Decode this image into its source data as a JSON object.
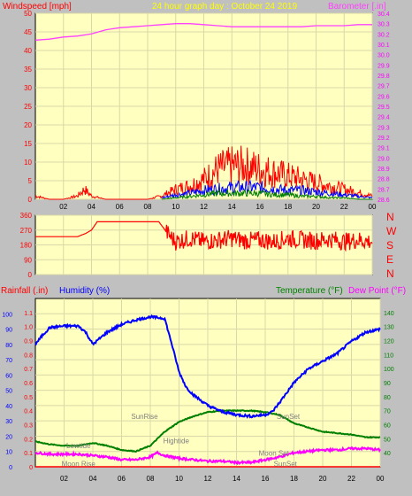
{
  "header": {
    "left_label": "Windspeed [mph]",
    "center_label": "24 hour graph day : October 24 2019",
    "right_label": "Barometer [.in]"
  },
  "colors": {
    "background": "#c0c0c0",
    "plot_bg": "#ffffc0",
    "grid": "#d8d8a8",
    "wind_speed": "#ff0000",
    "wind_avg": "#0000ff",
    "wind_low": "#008000",
    "barometer": "#ff40ff",
    "wind_dir": "#ff0000",
    "humidity": "#0000ff",
    "temperature": "#008000",
    "dewpoint": "#ff00ff",
    "rain": "#ff0000",
    "axis_left": "#ff0000",
    "axis_right": "#ff00ff",
    "axis_humidity": "#0000ff",
    "axis_temp": "#008000",
    "header_center": "#ffff00",
    "marker_text": "#808080"
  },
  "x_tick_labels": [
    "02",
    "04",
    "06",
    "08",
    "10",
    "12",
    "14",
    "16",
    "18",
    "20",
    "22",
    "00"
  ],
  "direction_labels": [
    "N",
    "W",
    "S",
    "E",
    "N"
  ],
  "bottom_header": {
    "rain_label": "Rainfall (.in)",
    "humidity_label": "Humidity (%)",
    "temp_label": "Temperature (°F)",
    "dew_label": "Dew Point (°F)"
  },
  "markers": [
    {
      "text": "Lowtide",
      "hour": 3.0,
      "val": 14
    },
    {
      "text": "Moon Rise",
      "hour": 3.0,
      "val": 2
    },
    {
      "text": "SunRise",
      "hour": 7.6,
      "val": 33
    },
    {
      "text": "Hightide",
      "hour": 9.8,
      "val": 17
    },
    {
      "text": "SunSet",
      "hour": 17.6,
      "val": 33
    },
    {
      "text": "Moon Set",
      "hour": 16.6,
      "val": 9
    },
    {
      "text": "SunSet",
      "hour": 17.4,
      "val": 2
    }
  ],
  "chart_data": [
    {
      "type": "line",
      "name": "wind-barometer",
      "x_unit": "hour",
      "y_left": {
        "label": "Windspeed [mph]",
        "lim": [
          0,
          50
        ],
        "ticks": [
          0,
          5,
          10,
          15,
          20,
          25,
          30,
          35,
          40,
          45,
          50
        ]
      },
      "y_right": {
        "label": "Barometer [.in]",
        "lim": [
          28.6,
          30.4
        ],
        "ticks": [
          28.6,
          28.7,
          28.8,
          28.9,
          29.0,
          29.1,
          29.2,
          29.3,
          29.4,
          29.5,
          29.6,
          29.7,
          29.8,
          29.9,
          30.0,
          30.1,
          30.2,
          30.3,
          30.4
        ]
      },
      "barometer": {
        "x": [
          0,
          1,
          2,
          3,
          4,
          5,
          6,
          7,
          8,
          9,
          10,
          11,
          12,
          13,
          14,
          15,
          16,
          17,
          18,
          19,
          20,
          21,
          22,
          23,
          24
        ],
        "y": [
          30.14,
          30.15,
          30.17,
          30.18,
          30.2,
          30.24,
          30.26,
          30.27,
          30.28,
          30.29,
          30.3,
          30.3,
          30.29,
          30.28,
          30.27,
          30.27,
          30.27,
          30.27,
          30.27,
          30.27,
          30.28,
          30.28,
          30.28,
          30.29,
          30.29
        ]
      },
      "wind_gust": {
        "x": [
          0,
          1,
          2,
          3,
          3.5,
          4,
          5,
          6,
          7,
          8,
          9,
          10,
          11,
          12,
          13,
          14,
          15,
          16,
          17,
          18,
          19,
          20,
          21,
          22,
          23,
          24
        ],
        "y": [
          1,
          0,
          0,
          1,
          3,
          1,
          0,
          0,
          0,
          0,
          1,
          3,
          4,
          6,
          9,
          10,
          10,
          9,
          8,
          7,
          6,
          5,
          4,
          3,
          2,
          1
        ]
      },
      "wind_avg": {
        "x": [
          9,
          10,
          11,
          12,
          13,
          14,
          15,
          16,
          17,
          18,
          19,
          20,
          21,
          22,
          23,
          24
        ],
        "y": [
          0.5,
          1.5,
          2,
          3,
          3.5,
          4,
          4,
          4,
          3.5,
          3,
          3,
          2.5,
          2,
          1.5,
          1,
          0.5
        ]
      },
      "wind_low": {
        "x": [
          9,
          10,
          11,
          12,
          13,
          14,
          15,
          16,
          17,
          18,
          19,
          20,
          21,
          22,
          23,
          24
        ],
        "y": [
          0,
          0.5,
          1,
          1.5,
          2,
          2,
          2,
          2,
          1.5,
          1.5,
          1,
          1,
          0.5,
          0.5,
          0,
          0
        ]
      }
    },
    {
      "type": "line",
      "name": "wind-direction",
      "x_unit": "hour",
      "y": {
        "lim": [
          0,
          360
        ],
        "ticks": [
          0,
          90,
          180,
          270,
          360
        ]
      },
      "series": [
        {
          "x": [
            0,
            3,
            3.6,
            4,
            4.4,
            5,
            8,
            8.8,
            9.5,
            10,
            11,
            12,
            13,
            14,
            15,
            16,
            17,
            18,
            19,
            20,
            21,
            22,
            23,
            24
          ],
          "values": [
            230,
            230,
            250,
            270,
            320,
            320,
            320,
            320,
            240,
            200,
            220,
            200,
            210,
            220,
            205,
            210,
            200,
            220,
            210,
            205,
            215,
            200,
            210,
            200
          ]
        }
      ]
    },
    {
      "type": "line",
      "name": "humidity-temperature",
      "x_unit": "hour",
      "y_rain": {
        "label": "Rainfall (.in)",
        "lim": [
          0,
          1.2
        ],
        "ticks": [
          0,
          0.1,
          0.2,
          0.3,
          0.4,
          0.5,
          0.6,
          0.7,
          0.8,
          0.9,
          1.0,
          1.1
        ]
      },
      "y_humidity": {
        "label": "Humidity (%)",
        "lim": [
          0,
          110
        ],
        "ticks": [
          0,
          10,
          20,
          30,
          40,
          50,
          60,
          70,
          80,
          90,
          100
        ]
      },
      "y_temp": {
        "label": "Temperature (°F)",
        "lim": [
          30,
          150
        ],
        "ticks": [
          40,
          50,
          60,
          70,
          80,
          90,
          100,
          110,
          120,
          130,
          140
        ]
      },
      "humidity": {
        "x": [
          0,
          0.5,
          1,
          2,
          3,
          3.5,
          4,
          4.5,
          5,
          6,
          7,
          8,
          9,
          9.5,
          10,
          10.5,
          11,
          12,
          13,
          14,
          15,
          16,
          16.5,
          17,
          18,
          19,
          20,
          21,
          22,
          23,
          24
        ],
        "y": [
          80,
          86,
          91,
          92,
          92,
          88,
          80,
          84,
          88,
          93,
          96,
          98,
          97,
          80,
          62,
          52,
          47,
          40,
          36,
          34,
          33,
          34,
          36,
          42,
          55,
          64,
          69,
          74,
          82,
          88,
          90
        ]
      },
      "temperature": {
        "x": [
          0,
          1,
          2,
          3,
          4,
          5,
          6,
          7,
          8,
          9,
          10,
          11,
          12,
          13,
          14,
          15,
          16,
          17,
          18,
          19,
          20,
          21,
          22,
          23,
          24
        ],
        "y": [
          48,
          46,
          45,
          45,
          47,
          45,
          42,
          41,
          45,
          55,
          62,
          66,
          69,
          70,
          70,
          70,
          69,
          67,
          61,
          58,
          55,
          54,
          53,
          51,
          51
        ]
      },
      "dewpoint": {
        "x": [
          0,
          1,
          2,
          3,
          4,
          5,
          6,
          7,
          8,
          8.5,
          9,
          10,
          11,
          12,
          13,
          14,
          15,
          16,
          17,
          18,
          19,
          20,
          21,
          22,
          23,
          24
        ],
        "y": [
          40,
          39,
          39,
          39,
          38,
          37,
          35,
          35,
          37,
          40,
          38,
          36,
          35,
          34,
          34,
          33,
          33,
          35,
          37,
          40,
          41,
          42,
          42,
          43,
          43,
          42
        ]
      },
      "rain": {
        "x": [
          0,
          24
        ],
        "y": [
          0,
          0
        ]
      }
    }
  ]
}
